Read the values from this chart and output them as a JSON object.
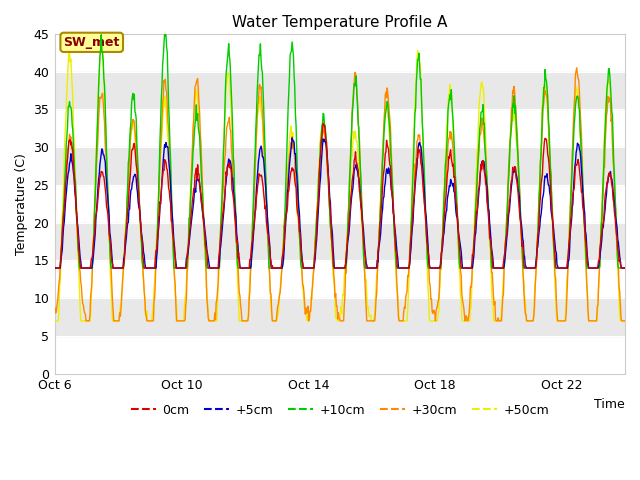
{
  "title": "Water Temperature Profile A",
  "xlabel": "Time",
  "ylabel": "Temperature (C)",
  "ylim": [
    0,
    45
  ],
  "yticks": [
    0,
    5,
    10,
    15,
    20,
    25,
    30,
    35,
    40,
    45
  ],
  "xtick_labels": [
    "Oct 6",
    "Oct 10",
    "Oct 14",
    "Oct 18",
    "Oct 22"
  ],
  "xtick_positions": [
    0,
    4,
    8,
    12,
    16
  ],
  "colors": {
    "0cm": "#dd0000",
    "+5cm": "#0000cc",
    "+10cm": "#00cc00",
    "+30cm": "#ff8800",
    "+50cm": "#eeee00"
  },
  "sw_met_box_color": "#ffff99",
  "sw_met_text_color": "#880000",
  "plot_bg": "#ffffff",
  "band_color": "#e8e8e8",
  "n_days": 18,
  "points_per_day": 48,
  "base_temp": 18.0,
  "seed": 42
}
